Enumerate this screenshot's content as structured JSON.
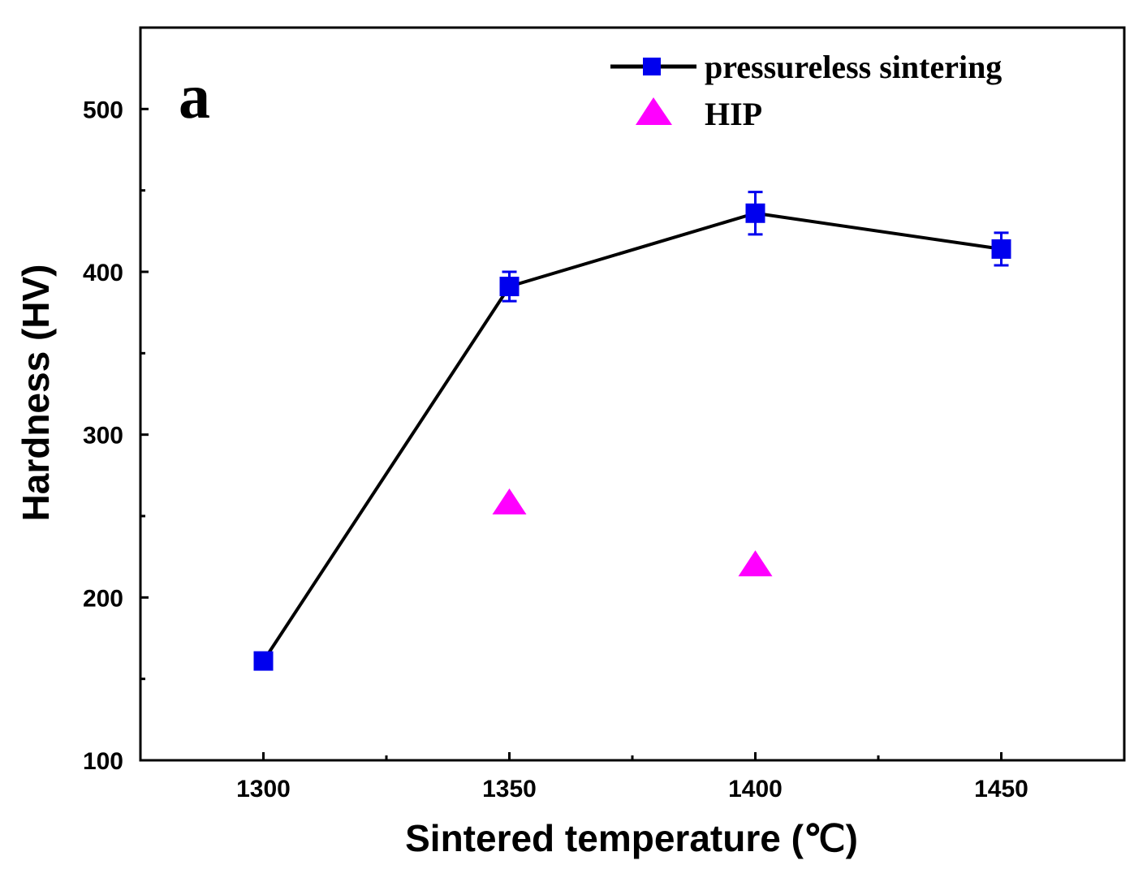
{
  "chart_data": {
    "type": "line",
    "panel_label": "a",
    "xlabel": "Sintered temperature (℃)",
    "ylabel": "Hardness (HV)",
    "xlim": [
      1275,
      1475
    ],
    "ylim": [
      100,
      550
    ],
    "x_ticks": [
      1300,
      1350,
      1400,
      1450
    ],
    "x_tick_labels": [
      "1300",
      "1350",
      "1400",
      "1450"
    ],
    "x_minor_ticks": [
      1325,
      1375,
      1425
    ],
    "y_ticks": [
      100,
      200,
      300,
      400,
      500
    ],
    "y_tick_labels": [
      "100",
      "200",
      "300",
      "400",
      "500"
    ],
    "y_minor_ticks": [
      150,
      250,
      350,
      450
    ],
    "grid": false,
    "legend_position": "top-right",
    "series": [
      {
        "name": "pressureless sintering",
        "marker": "square",
        "line": true,
        "color": "#0000ee",
        "line_color": "#000000",
        "x": [
          1300,
          1350,
          1400,
          1450
        ],
        "y": [
          161,
          391,
          436,
          414
        ],
        "error": [
          0,
          9,
          13,
          10
        ]
      },
      {
        "name": "HIP",
        "marker": "triangle",
        "line": false,
        "color": "#ff00ff",
        "x": [
          1350,
          1400
        ],
        "y": [
          259,
          221
        ],
        "error": [
          0,
          0
        ]
      }
    ]
  }
}
